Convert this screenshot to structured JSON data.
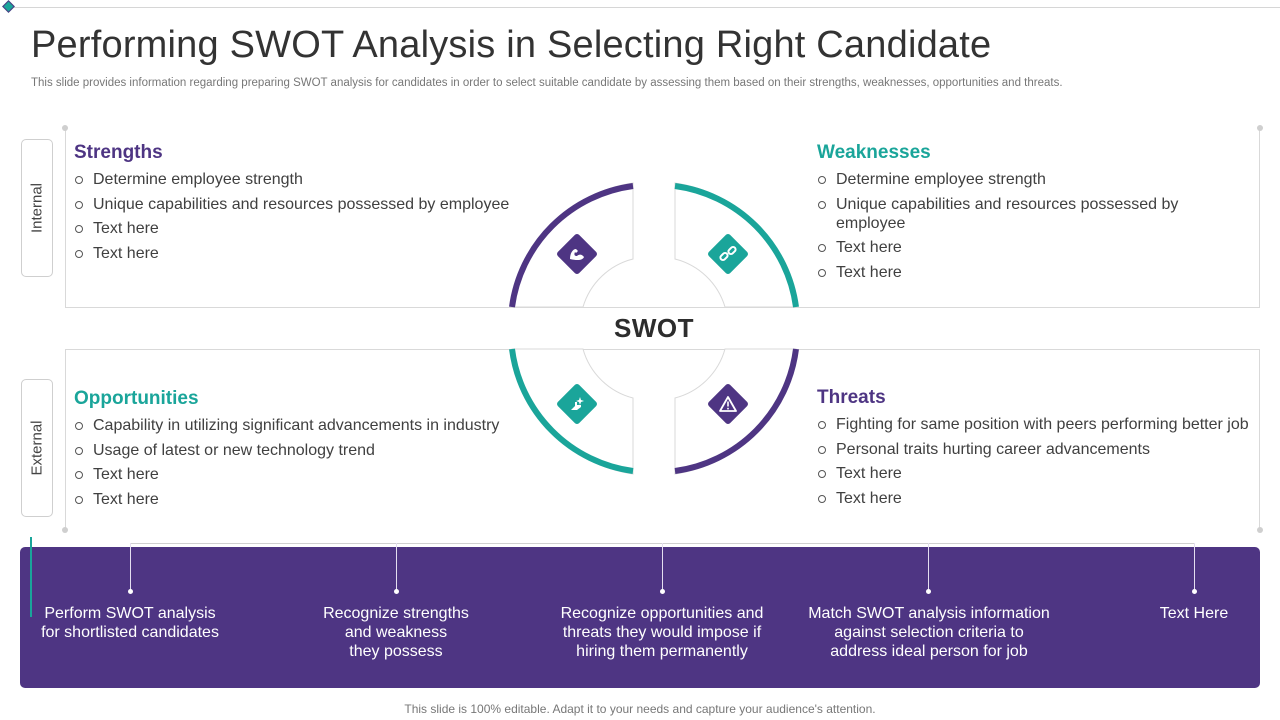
{
  "slide": {
    "title": "Performing SWOT Analysis in Selecting Right Candidate",
    "subtitle": "This slide provides information regarding preparing SWOT analysis for candidates in order to select suitable candidate by assessing them based on their strengths, weaknesses, opportunities and threats.",
    "footer": "This slide is 100% editable. Adapt it to your needs and capture your audience's attention."
  },
  "colors": {
    "purple": "#4e3583",
    "teal": "#1aa59a"
  },
  "side_tabs": {
    "internal": "Internal",
    "external": "External"
  },
  "center_label": "SWOT",
  "quadrants": {
    "strengths": {
      "heading": "Strengths",
      "icon": "flexed-arm-icon",
      "items": [
        "Determine employee strength",
        "Unique capabilities and resources possessed by employee",
        "Text here",
        "Text here"
      ]
    },
    "weaknesses": {
      "heading": "Weaknesses",
      "icon": "broken-chain-icon",
      "items": [
        "Determine employee strength",
        "Unique capabilities and resources possessed by employee",
        "Text here",
        "Text here"
      ]
    },
    "opportunities": {
      "heading": "Opportunities",
      "icon": "hand-sparkle-icon",
      "items": [
        "Capability in utilizing significant advancements in industry",
        "Usage of latest or new technology trend",
        "Text here",
        "Text here"
      ]
    },
    "threats": {
      "heading": "Threats",
      "icon": "warning-icon",
      "items": [
        "Fighting for same position with peers performing better job",
        "Personal traits hurting  career advancements",
        "Text here",
        "Text here"
      ]
    }
  },
  "steps": [
    [
      "Perform SWOT analysis",
      "for shortlisted candidates"
    ],
    [
      "Recognize strengths",
      "and weakness",
      "they possess"
    ],
    [
      "Recognize opportunities and",
      "threats they would impose if",
      "hiring them permanently"
    ],
    [
      "Match SWOT analysis information",
      "against selection criteria to",
      "address ideal person for job"
    ],
    [
      "Text Here"
    ]
  ]
}
